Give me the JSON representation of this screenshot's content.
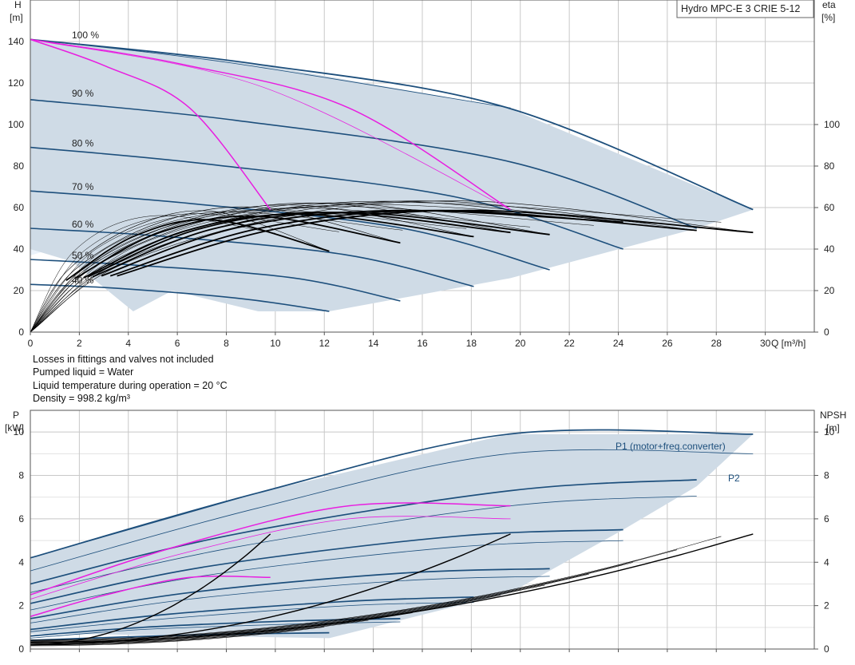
{
  "chart_data": [
    {
      "type": "line",
      "title": "Hydro MPC-E 3 CRIE 5-12",
      "ylabel": "H",
      "yunit": "[m]",
      "y2label": "eta",
      "y2unit": "[%]",
      "xlabel": "Q [m³/h]",
      "xlim": [
        0,
        32
      ],
      "ylim": [
        0,
        160
      ],
      "x_ticks": [
        0,
        2,
        4,
        6,
        8,
        10,
        12,
        14,
        16,
        18,
        20,
        22,
        24,
        26,
        28,
        30
      ],
      "y_ticks": [
        0,
        20,
        40,
        60,
        80,
        100,
        120,
        140
      ],
      "y2_ticks": [
        0,
        20,
        40,
        60,
        80,
        100
      ],
      "grid": true,
      "speed_labels": [
        "100 %",
        "90 %",
        "80 %",
        "70 %",
        "60 %",
        "50 %",
        "40 %"
      ],
      "speed_label_h": [
        143,
        115,
        91,
        70,
        52,
        37,
        25
      ],
      "operating_area": [
        [
          0,
          141
        ],
        [
          9.3,
          129
        ],
        [
          19.5,
          108
        ],
        [
          29.5,
          59
        ],
        [
          27.2,
          50
        ],
        [
          19.6,
          26
        ],
        [
          12.2,
          10
        ],
        [
          9.3,
          10
        ],
        [
          5.8,
          20
        ],
        [
          4.2,
          10
        ],
        [
          1.7,
          34
        ],
        [
          0,
          40
        ]
      ],
      "speed_curves": [
        {
          "speed": "100 %",
          "qmax": 29.5,
          "h": [
            [
              0,
              141
            ],
            [
              9.3,
              129
            ],
            [
              19.5,
              108
            ],
            [
              29.5,
              59
            ]
          ]
        },
        {
          "speed": "90 %",
          "qmax": 27.2,
          "h": [
            [
              0,
              112
            ],
            [
              8.4,
              102
            ],
            [
              19.6,
              82
            ],
            [
              27.2,
              50
            ]
          ]
        },
        {
          "speed": "80 %",
          "qmax": 24.2,
          "h": [
            [
              0,
              89
            ],
            [
              7.2,
              81
            ],
            [
              17.4,
              65
            ],
            [
              24.2,
              40
            ]
          ]
        },
        {
          "speed": "70 %",
          "qmax": 21.2,
          "h": [
            [
              0,
              68
            ],
            [
              6.5,
              62
            ],
            [
              15.2,
              50
            ],
            [
              21.2,
              30
            ]
          ]
        },
        {
          "speed": "60 %",
          "qmax": 18.1,
          "h": [
            [
              0,
              50
            ],
            [
              5.6,
              46
            ],
            [
              13,
              37
            ],
            [
              18.1,
              22
            ]
          ]
        },
        {
          "speed": "50 %",
          "qmax": 15.1,
          "h": [
            [
              0,
              35
            ],
            [
              4.6,
              32
            ],
            [
              10.8,
              26
            ],
            [
              15.1,
              15
            ]
          ]
        },
        {
          "speed": "40 %",
          "qmax": 12.2,
          "h": [
            [
              0,
              23
            ],
            [
              3.7,
              21
            ],
            [
              8.7,
              16
            ],
            [
              12.2,
              10
            ]
          ]
        }
      ],
      "pump_stage_curve_magenta": [
        [
          0,
          141
        ],
        [
          3.1,
          128
        ],
        [
          6.5,
          108
        ],
        [
          9.8,
          59
        ]
      ],
      "pump_stage_curve_magenta_2": [
        [
          0,
          141
        ],
        [
          6.2,
          129
        ],
        [
          13,
          108
        ],
        [
          19.6,
          59
        ]
      ],
      "efficiency_curves": [
        {
          "qmax": 12.2,
          "eta_peak": 58,
          "eta_end": 39
        },
        {
          "qmax": 15.1,
          "eta_peak": 60,
          "eta_end": 43
        },
        {
          "qmax": 18.1,
          "eta_peak": 61,
          "eta_end": 46
        },
        {
          "qmax": 19.6,
          "eta_peak": 62,
          "eta_end": 48
        },
        {
          "qmax": 21.2,
          "eta_peak": 62,
          "eta_end": 47
        },
        {
          "qmax": 24.2,
          "eta_peak": 63,
          "eta_end": 53
        },
        {
          "qmax": 27.2,
          "eta_peak": 63,
          "eta_end": 49
        },
        {
          "qmax": 29.5,
          "eta_peak": 63,
          "eta_end": 48
        }
      ]
    },
    {
      "type": "line",
      "ylabel": "P",
      "yunit": "[kW]",
      "y2label": "NPSH",
      "y2unit": "[m]",
      "xlim": [
        0,
        32
      ],
      "ylim": [
        0,
        11
      ],
      "y_ticks": [
        0,
        2,
        4,
        6,
        8,
        10
      ],
      "y2_ticks": [
        0,
        2,
        4,
        6,
        8,
        10
      ],
      "grid": true,
      "series_labels": [
        "P1 (motor+freq.converter)",
        "P2"
      ],
      "power_area": [
        [
          0,
          4.2
        ],
        [
          9.3,
          7.2
        ],
        [
          19.5,
          9.9
        ],
        [
          29.5,
          9.9
        ],
        [
          27.2,
          7.5
        ],
        [
          24.2,
          5.5
        ],
        [
          19.6,
          2.6
        ],
        [
          12.2,
          0.5
        ],
        [
          1.7,
          0.7
        ],
        [
          0,
          0.7
        ]
      ],
      "p1_curves": [
        {
          "qmax": 29.5,
          "p": [
            [
              0,
              4.2
            ],
            [
              9.3,
              7.2
            ],
            [
              19.5,
              9.9
            ],
            [
              29.5,
              9.9
            ]
          ]
        },
        {
          "qmax": 27.2,
          "p": [
            [
              0,
              3.0
            ],
            [
              8.4,
              5.3
            ],
            [
              19.6,
              7.3
            ],
            [
              27.2,
              7.8
            ]
          ]
        },
        {
          "qmax": 24.2,
          "p": [
            [
              0,
              2.1
            ],
            [
              7.2,
              3.8
            ],
            [
              17.4,
              5.2
            ],
            [
              24.2,
              5.5
            ]
          ]
        },
        {
          "qmax": 21.2,
          "p": [
            [
              0,
              1.4
            ],
            [
              6.5,
              2.6
            ],
            [
              15.2,
              3.5
            ],
            [
              21.2,
              3.7
            ]
          ]
        },
        {
          "qmax": 18.1,
          "p": [
            [
              0,
              0.9
            ],
            [
              5.6,
              1.6
            ],
            [
              13,
              2.2
            ],
            [
              18.1,
              2.4
            ]
          ]
        },
        {
          "qmax": 15.1,
          "p": [
            [
              0,
              0.6
            ],
            [
              4.6,
              1.0
            ],
            [
              10.8,
              1.3
            ],
            [
              15.1,
              1.4
            ]
          ]
        },
        {
          "qmax": 12.2,
          "p": [
            [
              0,
              0.4
            ],
            [
              3.7,
              0.55
            ],
            [
              8.7,
              0.7
            ],
            [
              12.2,
              0.75
            ]
          ]
        }
      ],
      "p2_curves": [
        {
          "qmax": 29.5,
          "p": [
            [
              0,
              3.6
            ],
            [
              9.3,
              6.5
            ],
            [
              19.5,
              9.0
            ],
            [
              29.5,
              9.0
            ]
          ]
        },
        {
          "qmax": 27.2,
          "p": [
            [
              0,
              2.6
            ],
            [
              8.4,
              4.7
            ],
            [
              19.6,
              6.6
            ],
            [
              27.2,
              7.05
            ]
          ]
        },
        {
          "qmax": 24.2,
          "p": [
            [
              0,
              1.8
            ],
            [
              7.2,
              3.4
            ],
            [
              17.4,
              4.7
            ],
            [
              24.2,
              5.0
            ]
          ]
        },
        {
          "qmax": 21.2,
          "p": [
            [
              0,
              1.2
            ],
            [
              6.5,
              2.3
            ],
            [
              15.2,
              3.15
            ],
            [
              21.2,
              3.35
            ]
          ]
        },
        {
          "qmax": 18.1,
          "p": [
            [
              0,
              0.8
            ],
            [
              5.6,
              1.4
            ],
            [
              13,
              2.0
            ],
            [
              18.1,
              2.15
            ]
          ]
        },
        {
          "qmax": 15.1,
          "p": [
            [
              0,
              0.5
            ],
            [
              4.6,
              0.9
            ],
            [
              10.8,
              1.15
            ],
            [
              15.1,
              1.25
            ]
          ]
        }
      ],
      "p1_magenta": [
        [
          0,
          2.5
        ],
        [
          6.2,
          4.8
        ],
        [
          13,
          6.6
        ],
        [
          19.6,
          6.6
        ]
      ],
      "p1_magenta_2": [
        [
          0,
          1.5
        ],
        [
          3.1,
          2.5
        ],
        [
          6.5,
          3.3
        ],
        [
          9.8,
          3.3
        ]
      ],
      "p2_magenta": [
        [
          0,
          2.3
        ],
        [
          6.2,
          4.4
        ],
        [
          13,
          6.0
        ],
        [
          19.6,
          6.0
        ]
      ],
      "npsh_curves": [
        {
          "npsh": [
            [
              0,
              0.3
            ],
            [
              29.5,
              5.3
            ]
          ]
        },
        {
          "npsh": [
            [
              0,
              0.2
            ],
            [
              19.6,
              5.3
            ]
          ]
        },
        {
          "npsh": [
            [
              0,
              0.2
            ],
            [
              9.8,
              5.3
            ]
          ]
        }
      ]
    }
  ],
  "notes": [
    "Losses in fittings and valves not included",
    "Pumped liquid = Water",
    "Liquid temperature during operation = 20 °C",
    "Density = 998.2 kg/m³"
  ],
  "colors": {
    "area": "#cfdbe6",
    "area_light": "#eaf2fa",
    "speed_curve": "#1d4f7c",
    "magenta": "#e81ee0",
    "efficiency": "#000000",
    "grid": "#c8c8c8"
  }
}
